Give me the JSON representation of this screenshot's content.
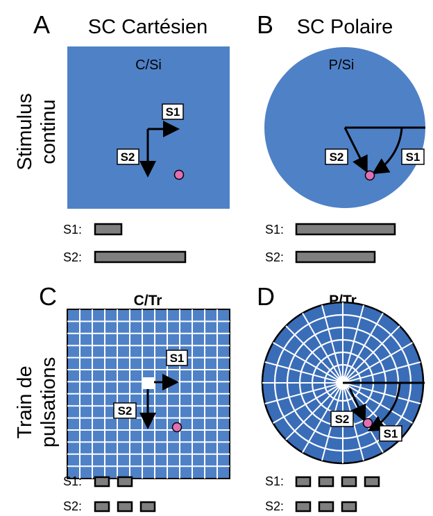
{
  "panels": {
    "A": {
      "letter": "A",
      "column_title": "SC Cartésien",
      "title": "C/Si"
    },
    "B": {
      "letter": "B",
      "column_title": "SC Polaire",
      "title": "P/Si"
    },
    "C": {
      "letter": "C",
      "title": "C/Tr"
    },
    "D": {
      "letter": "D",
      "title": "P/Tr"
    }
  },
  "row_labels": {
    "top": [
      "Stimulus",
      "continu"
    ],
    "bottom": [
      "Train de",
      "pulsations"
    ]
  },
  "labels": {
    "s1": "S1",
    "s2": "S2"
  },
  "legend": {
    "s1": "S1:",
    "s2": "S2:"
  },
  "colors": {
    "field": "#4f81c7",
    "field_dark": "#3a6db8",
    "grid": "#ffffff",
    "target": "#e06fb3",
    "bar": "#7f7f7f"
  },
  "durations": {
    "A": {
      "s1": 1,
      "s2": 3.2
    },
    "B": {
      "s1": 3.6,
      "s2": 2.9
    },
    "C": {
      "s1_pulses": 2,
      "s2_pulses": 3
    },
    "D": {
      "s1_pulses": 4,
      "s2_pulses": 3
    }
  }
}
